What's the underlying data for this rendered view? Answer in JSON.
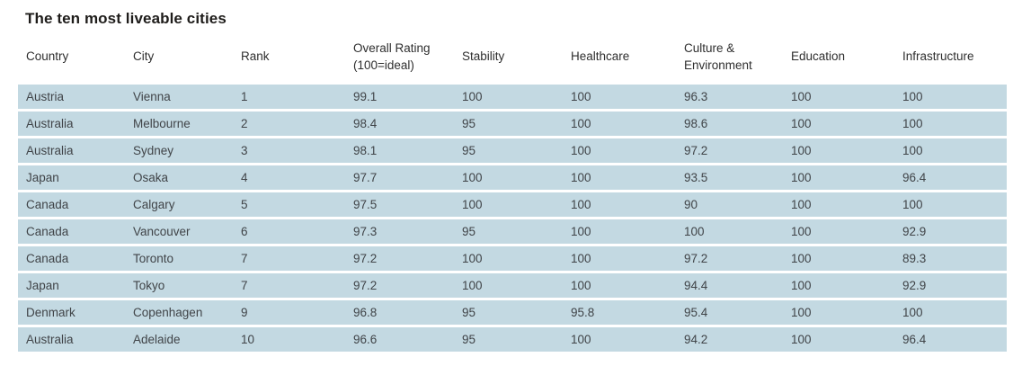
{
  "title": "The ten most liveable cities",
  "colors": {
    "row_band": "#c3d9e2",
    "title_text": "#1e1c1a",
    "header_text": "#2e2e2e",
    "body_text": "#404448",
    "background": "#ffffff"
  },
  "chart_data": {
    "type": "table",
    "title": "The ten most liveable cities",
    "columns": [
      "Country",
      "City",
      "Rank",
      "Overall Rating\n(100=ideal)",
      "Stability",
      "Healthcare",
      "Culture &\nEnvironment",
      "Education",
      "Infrastructure"
    ],
    "rows": [
      [
        "Austria",
        "Vienna",
        "1",
        "99.1",
        "100",
        "100",
        "96.3",
        "100",
        "100"
      ],
      [
        "Australia",
        "Melbourne",
        "2",
        "98.4",
        "95",
        "100",
        "98.6",
        "100",
        "100"
      ],
      [
        "Australia",
        "Sydney",
        "3",
        "98.1",
        "95",
        "100",
        "97.2",
        "100",
        "100"
      ],
      [
        "Japan",
        "Osaka",
        "4",
        "97.7",
        "100",
        "100",
        "93.5",
        "100",
        "96.4"
      ],
      [
        "Canada",
        "Calgary",
        "5",
        "97.5",
        "100",
        "100",
        "90",
        "100",
        "100"
      ],
      [
        "Canada",
        "Vancouver",
        "6",
        "97.3",
        "95",
        "100",
        "100",
        "100",
        "92.9"
      ],
      [
        "Canada",
        "Toronto",
        "7",
        "97.2",
        "100",
        "100",
        "97.2",
        "100",
        "89.3"
      ],
      [
        "Japan",
        "Tokyo",
        "7",
        "97.2",
        "100",
        "100",
        "94.4",
        "100",
        "92.9"
      ],
      [
        "Denmark",
        "Copenhagen",
        "9",
        "96.8",
        "95",
        "95.8",
        "95.4",
        "100",
        "100"
      ],
      [
        "Australia",
        "Adelaide",
        "10",
        "96.6",
        "95",
        "100",
        "94.2",
        "100",
        "96.4"
      ]
    ]
  }
}
